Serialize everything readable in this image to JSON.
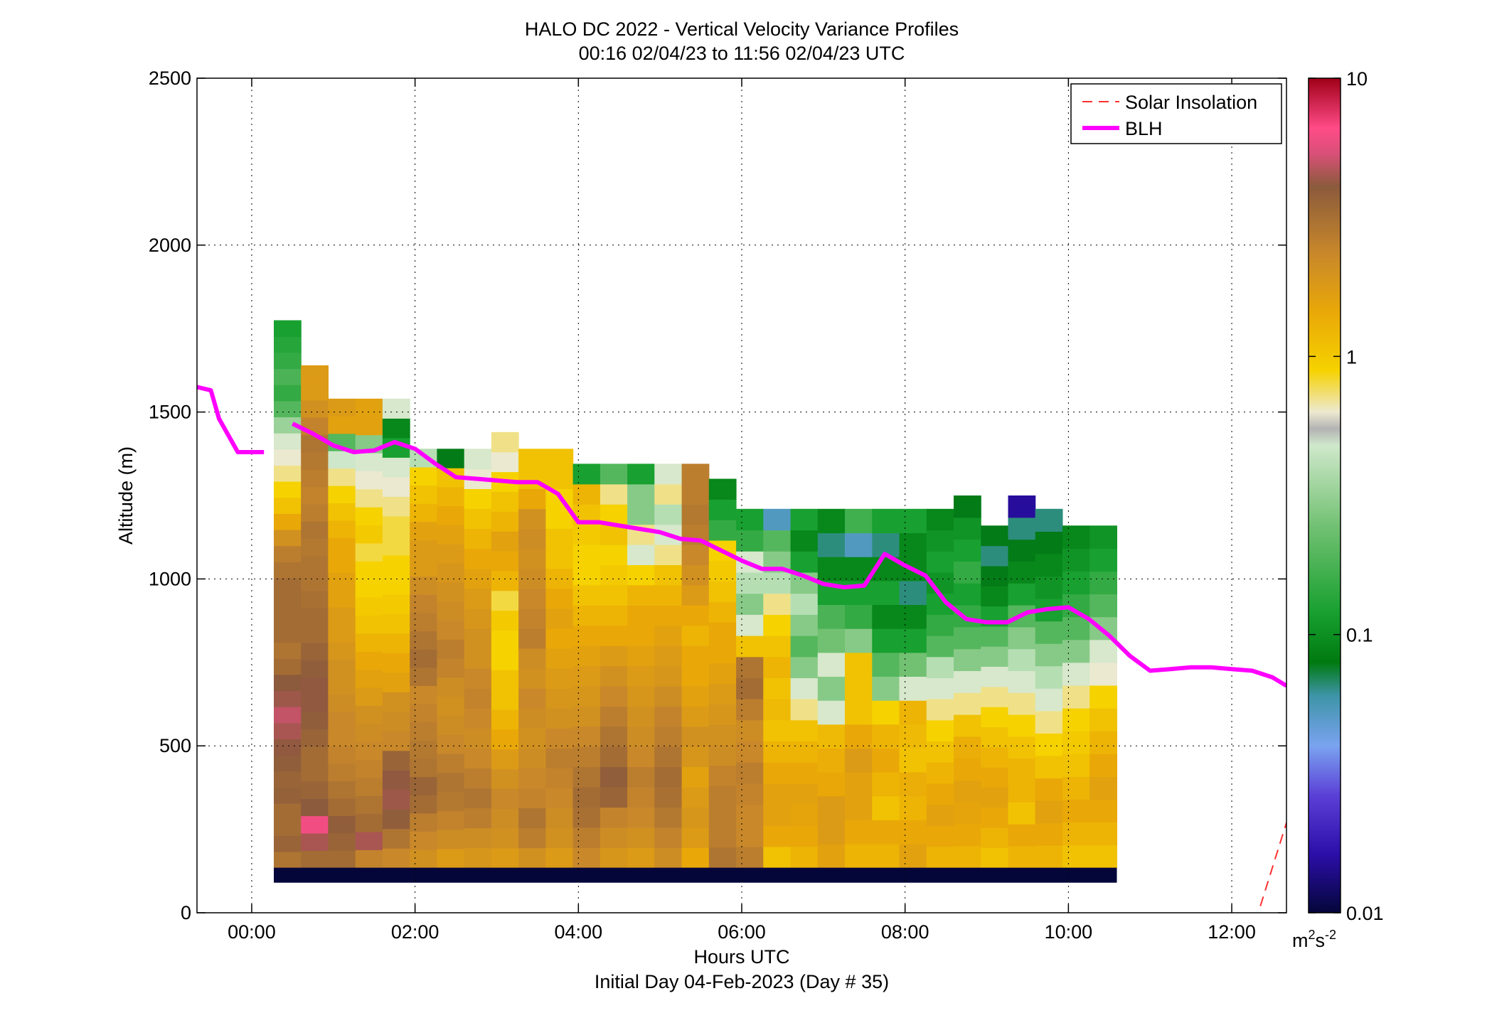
{
  "chart_data": {
    "type": "heatmap",
    "title": "HALO DC 2022 - Vertical Velocity Variance Profiles",
    "subtitle": "00:16 02/04/23 to 11:56 02/04/23  UTC",
    "xlabel": "Hours UTC",
    "xlabel2": "Initial Day 04-Feb-2023 (Day # 35)",
    "ylabel": "Altitude (m)",
    "xlim": [
      -0.67,
      12.67
    ],
    "ylim": [
      0,
      2500
    ],
    "x_ticks": [
      0,
      2,
      4,
      6,
      8,
      10,
      12
    ],
    "x_tick_labels": [
      "00:00",
      "02:00",
      "04:00",
      "06:00",
      "08:00",
      "10:00",
      "12:00"
    ],
    "y_ticks": [
      0,
      500,
      1000,
      1500,
      2000,
      2500
    ],
    "y_tick_labels": [
      "0",
      "500",
      "1000",
      "1500",
      "2000",
      "2500"
    ],
    "grid": true,
    "legend_position": "top-right",
    "colorbar": {
      "scale": "log",
      "min": 0.01,
      "max": 10,
      "tick_values": [
        0.01,
        0.1,
        1,
        10
      ],
      "tick_labels": [
        "0.01",
        "0.1",
        "1",
        "10"
      ],
      "unit_base": "m",
      "unit_sup1": "2",
      "unit_mid": "s",
      "unit_sup2": "-2"
    },
    "heatmap": {
      "x_start_hours": 0.27,
      "bin_width_hours": 0.333,
      "bin_height_m": 45,
      "noise_band_m": [
        90,
        135
      ],
      "noise_value": 0.01,
      "columns": [
        {
          "top_m": 1775,
          "values": [
            1.8,
            2.2,
            2.0,
            2.0,
            2.3,
            2.2,
            2.4,
            2.6,
            3.0,
            3.5,
            2.8,
            2.5,
            2.0,
            1.8,
            2.0,
            2.0,
            2.0,
            2.0,
            1.8,
            1.6,
            1.2,
            0.8,
            0.6,
            0.5,
            0.4,
            0.35,
            0.3,
            0.22,
            0.15,
            0.12,
            0.14,
            0.12,
            0.11,
            0.1
          ]
        },
        {
          "top_m": 1640,
          "values": [
            2.0,
            3.0,
            5.0,
            2.5,
            2.2,
            2.0,
            2.0,
            2.2,
            2.4,
            2.6,
            2.6,
            2.4,
            2.2,
            2.0,
            2.0,
            1.9,
            1.8,
            1.8,
            1.7,
            1.8,
            1.6,
            1.5,
            1.6,
            1.7,
            1.8,
            1.5,
            1.2,
            1.0,
            1.0
          ]
        },
        {
          "top_m": 1540,
          "values": [
            2.0,
            2.2,
            2.4,
            2.0,
            1.8,
            1.6,
            1.5,
            1.4,
            1.4,
            1.3,
            1.2,
            1.2,
            1.1,
            1.0,
            1.0,
            0.9,
            0.9,
            0.8,
            0.8,
            0.7,
            0.6,
            0.5,
            0.4,
            0.28,
            0.15,
            0.9,
            1.0
          ]
        },
        {
          "top_m": 1540,
          "values": [
            1.5,
            3.0,
            2.0,
            1.8,
            1.6,
            1.5,
            1.4,
            1.3,
            1.2,
            1.0,
            0.9,
            0.8,
            0.7,
            0.6,
            0.55,
            0.5,
            0.5,
            0.45,
            0.55,
            0.5,
            0.4,
            0.35,
            0.3,
            0.2,
            0.9,
            0.9
          ]
        },
        {
          "top_m": 1540,
          "values": [
            1.4,
            1.8,
            2.4,
            2.8,
            2.6,
            2.2,
            1.4,
            1.3,
            1.2,
            0.9,
            0.8,
            0.7,
            0.6,
            0.55,
            0.5,
            0.5,
            0.45,
            0.45,
            0.4,
            0.35,
            0.3,
            0.1,
            0.08,
            0.3
          ]
        },
        {
          "top_m": 1390,
          "values": [
            1.2,
            1.4,
            1.6,
            2.0,
            2.2,
            1.8,
            1.7,
            1.6,
            1.5,
            1.4,
            1.8,
            2.0,
            1.8,
            1.6,
            1.5,
            1.3,
            1.0,
            1.0,
            0.9,
            0.7,
            0.6,
            0.5,
            0.25
          ]
        },
        {
          "top_m": 1390,
          "values": [
            1.0,
            1.3,
            1.5,
            1.7,
            1.8,
            1.6,
            1.4,
            1.3,
            1.2,
            1.3,
            1.5,
            1.6,
            1.4,
            1.3,
            1.2,
            1.1,
            1.0,
            0.9,
            0.8,
            0.7,
            0.6,
            0.07
          ]
        },
        {
          "top_m": 1390,
          "values": [
            1.1,
            1.3,
            1.6,
            1.8,
            1.6,
            1.4,
            1.3,
            1.4,
            1.5,
            1.4,
            1.2,
            1.2,
            1.1,
            1.0,
            0.9,
            0.8,
            0.7,
            0.6,
            0.5,
            0.35,
            0.3
          ]
        },
        {
          "top_m": 1440,
          "values": [
            1.0,
            1.2,
            1.3,
            1.4,
            1.2,
            1.0,
            0.8,
            0.7,
            0.6,
            0.6,
            0.5,
            0.5,
            0.55,
            0.45,
            0.7,
            0.8,
            0.9,
            0.7,
            0.6,
            0.5,
            0.35,
            0.4
          ]
        },
        {
          "top_m": 1390,
          "values": [
            1.2,
            1.6,
            1.8,
            1.5,
            1.4,
            1.3,
            1.2,
            1.3,
            1.4,
            1.2,
            1.3,
            1.6,
            1.5,
            1.4,
            1.3,
            1.2,
            1.3,
            1.2,
            0.8,
            0.6,
            0.6
          ]
        },
        {
          "top_m": 1390,
          "values": [
            1.0,
            1.2,
            1.3,
            1.4,
            1.5,
            1.6,
            1.4,
            1.2,
            1.1,
            1.0,
            0.9,
            0.8,
            0.9,
            0.8,
            0.7,
            0.6,
            0.6,
            0.5,
            0.5,
            0.6,
            0.6
          ]
        },
        {
          "top_m": 1345,
          "values": [
            1.4,
            1.6,
            1.9,
            2.0,
            1.8,
            1.6,
            1.4,
            1.2,
            1.1,
            1.0,
            0.9,
            0.8,
            0.7,
            0.6,
            0.5,
            0.5,
            0.55,
            0.6,
            0.7,
            0.1
          ]
        },
        {
          "top_m": 1345,
          "values": [
            1.1,
            1.3,
            1.5,
            2.2,
            2.4,
            2.0,
            1.8,
            1.6,
            1.4,
            1.2,
            1.0,
            0.8,
            0.7,
            0.6,
            0.55,
            0.5,
            0.6,
            0.5,
            0.4,
            0.15
          ]
        },
        {
          "top_m": 1345,
          "values": [
            1.0,
            1.2,
            1.4,
            1.5,
            1.6,
            1.4,
            1.3,
            1.2,
            1.1,
            1.0,
            0.9,
            0.8,
            0.8,
            0.7,
            0.5,
            0.3,
            0.4,
            0.2,
            0.2,
            0.1
          ]
        },
        {
          "top_m": 1345,
          "values": [
            1.3,
            1.5,
            1.7,
            1.9,
            2.0,
            1.8,
            1.6,
            1.5,
            1.3,
            1.1,
            1.0,
            0.9,
            0.8,
            0.7,
            0.6,
            0.4,
            0.3,
            0.25,
            0.4,
            0.3
          ]
        },
        {
          "top_m": 1345,
          "values": [
            0.8,
            1.0,
            1.1,
            1.0,
            0.9,
            1.1,
            1.2,
            1.0,
            0.9,
            0.8,
            0.8,
            0.7,
            0.8,
            1.0,
            1.2,
            1.4,
            1.6,
            1.7,
            1.6,
            1.6
          ]
        },
        {
          "top_m": 1300,
          "values": [
            1.8,
            1.6,
            1.6,
            1.6,
            1.5,
            1.3,
            1.2,
            1.1,
            1.0,
            0.9,
            0.8,
            0.8,
            0.7,
            0.6,
            0.55,
            0.5,
            0.12,
            0.1,
            0.08
          ]
        },
        {
          "top_m": 1210,
          "values": [
            1.6,
            1.4,
            1.4,
            1.5,
            1.6,
            1.4,
            1.3,
            1.6,
            2.0,
            1.8,
            0.6,
            0.3,
            0.2,
            0.25,
            0.3,
            0.12,
            0.1
          ]
        },
        {
          "top_m": 1210,
          "values": [
            0.6,
            0.8,
            0.9,
            0.9,
            0.8,
            0.7,
            0.6,
            0.65,
            0.6,
            0.7,
            0.6,
            0.5,
            0.4,
            0.25,
            0.2,
            0.15,
            0.05
          ]
        },
        {
          "top_m": 1210,
          "values": [
            0.7,
            0.8,
            0.85,
            0.9,
            0.8,
            0.7,
            0.6,
            0.4,
            0.3,
            0.2,
            0.15,
            0.2,
            0.25,
            0.2,
            0.1,
            0.08,
            0.1
          ]
        },
        {
          "top_m": 1210,
          "values": [
            0.9,
            1.0,
            1.0,
            0.8,
            0.75,
            0.65,
            0.3,
            0.2,
            0.3,
            0.18,
            0.14,
            0.1,
            0.08,
            0.06,
            0.08
          ]
        },
        {
          "top_m": 1210,
          "values": [
            0.7,
            0.8,
            0.9,
            0.9,
            1.0,
            0.8,
            0.6,
            0.6,
            0.6,
            0.2,
            0.12,
            0.1,
            0.08,
            0.05,
            0.13
          ]
        },
        {
          "top_m": 1210,
          "values": [
            0.7,
            0.8,
            0.6,
            0.7,
            0.8,
            0.7,
            0.5,
            0.2,
            0.15,
            0.1,
            0.08,
            0.1,
            0.08,
            0.06,
            0.1
          ]
        },
        {
          "top_m": 1210,
          "values": [
            0.9,
            0.8,
            0.7,
            0.75,
            0.6,
            0.65,
            0.7,
            0.3,
            0.18,
            0.1,
            0.08,
            0.06,
            0.08,
            0.08,
            0.1
          ]
        },
        {
          "top_m": 1210,
          "values": [
            0.7,
            0.8,
            0.9,
            0.8,
            0.7,
            0.6,
            0.5,
            0.4,
            0.3,
            0.25,
            0.15,
            0.12,
            0.1,
            0.09,
            0.1,
            0.09,
            0.08
          ]
        },
        {
          "top_m": 1250,
          "values": [
            0.7,
            0.8,
            0.85,
            0.9,
            0.8,
            0.75,
            0.6,
            0.4,
            0.3,
            0.2,
            0.15,
            0.12,
            0.1,
            0.12,
            0.1,
            0.09,
            0.07
          ]
        },
        {
          "top_m": 1160,
          "values": [
            0.6,
            0.7,
            0.8,
            0.9,
            0.8,
            0.7,
            0.6,
            0.5,
            0.4,
            0.3,
            0.2,
            0.15,
            0.1,
            0.08,
            0.07,
            0.06,
            0.07
          ]
        },
        {
          "top_m": 1250,
          "values": [
            0.7,
            0.8,
            0.6,
            0.7,
            0.7,
            0.6,
            0.5,
            0.4,
            0.3,
            0.25,
            0.2,
            0.15,
            0.1,
            0.08,
            0.07,
            0.06,
            0.015
          ]
        },
        {
          "top_m": 1210,
          "values": [
            0.7,
            0.8,
            0.9,
            0.8,
            0.6,
            0.5,
            0.4,
            0.3,
            0.25,
            0.2,
            0.15,
            0.1,
            0.09,
            0.08,
            0.07,
            0.06
          ]
        },
        {
          "top_m": 1160,
          "values": [
            0.6,
            0.7,
            0.8,
            0.7,
            0.6,
            0.55,
            0.5,
            0.4,
            0.3,
            0.2,
            0.15,
            0.12,
            0.1,
            0.09,
            0.08
          ]
        },
        {
          "top_m": 1160,
          "values": [
            0.6,
            0.7,
            0.8,
            0.9,
            0.8,
            0.7,
            0.6,
            0.5,
            0.35,
            0.3,
            0.2,
            0.15,
            0.12,
            0.1,
            0.09
          ]
        }
      ]
    },
    "series": [
      {
        "name": "BLH",
        "color": "#ff00ff",
        "segments": [
          {
            "x": [
              -0.67,
              -0.5,
              -0.4,
              -0.17,
              0.15
            ],
            "y": [
              1575,
              1565,
              1480,
              1380,
              1380
            ]
          },
          {
            "x": [
              0.5,
              0.75,
              1.0,
              1.25,
              1.5,
              1.75,
              2.0,
              2.25,
              2.5,
              2.75,
              3.0,
              3.25,
              3.5,
              3.75,
              4.0,
              4.25,
              4.5,
              4.75,
              5.0,
              5.25,
              5.5,
              5.75,
              6.0,
              6.25,
              6.5,
              6.75,
              7.0,
              7.25,
              7.5,
              7.75,
              8.0,
              8.25,
              8.5,
              8.75,
              9.0,
              9.25,
              9.5,
              9.75,
              10.0,
              10.25,
              10.5,
              10.75,
              11.0,
              11.25,
              11.5,
              11.75,
              12.0,
              12.25,
              12.5,
              12.67
            ],
            "y": [
              1465,
              1435,
              1400,
              1380,
              1385,
              1410,
              1390,
              1345,
              1305,
              1300,
              1295,
              1290,
              1290,
              1255,
              1170,
              1170,
              1160,
              1150,
              1140,
              1120,
              1115,
              1085,
              1055,
              1030,
              1030,
              1010,
              985,
              975,
              980,
              1075,
              1040,
              1010,
              930,
              880,
              870,
              870,
              900,
              910,
              915,
              880,
              830,
              770,
              725,
              730,
              735,
              735,
              730,
              725,
              705,
              680
            ]
          }
        ]
      },
      {
        "name": "Solar Insolation",
        "color": "#ff3030",
        "x": [
          12.35,
          12.67
        ],
        "y": [
          20,
          270
        ]
      }
    ]
  }
}
